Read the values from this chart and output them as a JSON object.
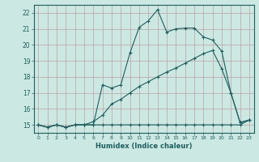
{
  "xlabel": "Humidex (Indice chaleur)",
  "background_color": "#cce8e2",
  "grid_color": "#c0a0a0",
  "line_color": "#1a6060",
  "xlim": [
    -0.5,
    23.5
  ],
  "ylim": [
    14.5,
    22.5
  ],
  "xtick_labels": [
    "0",
    "1",
    "2",
    "3",
    "4",
    "5",
    "6",
    "7",
    "8",
    "9",
    "10",
    "11",
    "12",
    "13",
    "14",
    "15",
    "16",
    "17",
    "18",
    "19",
    "20",
    "21",
    "22",
    "23"
  ],
  "ytick_labels": [
    "15",
    "16",
    "17",
    "18",
    "19",
    "20",
    "21",
    "22"
  ],
  "line1_x": [
    0,
    1,
    2,
    3,
    4,
    5,
    6,
    7,
    8,
    9,
    10,
    11,
    12,
    13,
    14,
    15,
    16,
    17,
    18,
    19,
    20,
    21,
    22,
    23
  ],
  "line1_y": [
    15.0,
    14.85,
    15.0,
    14.85,
    15.0,
    15.0,
    15.0,
    17.5,
    17.3,
    17.5,
    19.5,
    21.1,
    21.5,
    22.2,
    20.8,
    21.0,
    21.05,
    21.05,
    20.5,
    20.3,
    19.6,
    17.0,
    15.15,
    15.3
  ],
  "line2_x": [
    0,
    1,
    2,
    3,
    4,
    5,
    6,
    7,
    8,
    9,
    10,
    11,
    12,
    13,
    14,
    15,
    16,
    17,
    18,
    19,
    20,
    21,
    22,
    23
  ],
  "line2_y": [
    15.0,
    14.85,
    15.0,
    14.85,
    15.0,
    15.0,
    15.2,
    15.6,
    16.3,
    16.6,
    17.0,
    17.4,
    17.7,
    18.0,
    18.3,
    18.55,
    18.85,
    19.15,
    19.45,
    19.65,
    18.5,
    17.0,
    15.15,
    15.3
  ],
  "line3_x": [
    0,
    1,
    2,
    3,
    4,
    5,
    6,
    7,
    8,
    9,
    10,
    11,
    12,
    13,
    14,
    15,
    16,
    17,
    18,
    19,
    20,
    21,
    22,
    23
  ],
  "line3_y": [
    15.0,
    14.85,
    15.0,
    14.85,
    15.0,
    15.0,
    15.0,
    15.0,
    15.0,
    15.0,
    15.0,
    15.0,
    15.0,
    15.0,
    15.0,
    15.0,
    15.0,
    15.0,
    15.0,
    15.0,
    15.0,
    15.0,
    15.0,
    15.3
  ]
}
